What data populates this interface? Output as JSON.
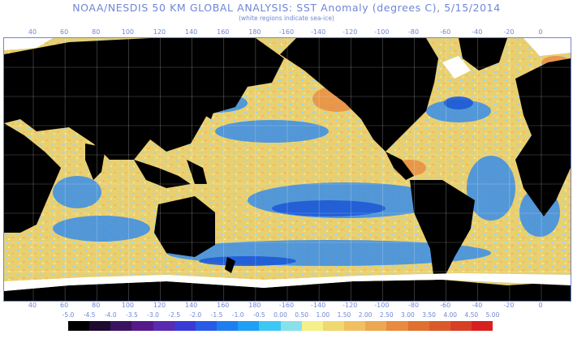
{
  "header": {
    "title": "NOAA/NESDIS 50 KM GLOBAL ANALYSIS: SST Anomaly (degrees C), 5/15/2014",
    "subtitle": "(white regions indicate sea-ice)"
  },
  "longitude_labels": [
    "40",
    "60",
    "80",
    "100",
    "120",
    "140",
    "160",
    "180",
    "-160",
    "-140",
    "-120",
    "-100",
    "-80",
    "-60",
    "-40",
    "-20",
    "0"
  ],
  "legend": {
    "labels": [
      "-5.0",
      "-4.5",
      "-4.0",
      "-3.5",
      "-3.0",
      "-2.5",
      "-2.0",
      "-1.5",
      "-1.0",
      "-0.5",
      "0.00",
      "0.50",
      "1.00",
      "1.50",
      "2.00",
      "2.50",
      "3.00",
      "3.50",
      "4.00",
      "4.50",
      "5.00"
    ],
    "colors": [
      "#000000",
      "#1e0a2e",
      "#3a1260",
      "#551a8a",
      "#5a2ab0",
      "#3a3ad6",
      "#2a5ae8",
      "#1e7ef0",
      "#1ea0f5",
      "#3cc8f5",
      "#88e0ea",
      "#f5f08a",
      "#f0d870",
      "#f0c060",
      "#eba850",
      "#e88a40",
      "#e07030",
      "#dc5a2a",
      "#d84024",
      "#d82020"
    ]
  },
  "map": {
    "land_color": "#000000",
    "ice_color": "#ffffff",
    "ocean_base_color": "#e4c76a",
    "cool_color": "#3a8ee8",
    "cold_color": "#1e5ad6",
    "warm_color": "#e88a40"
  }
}
